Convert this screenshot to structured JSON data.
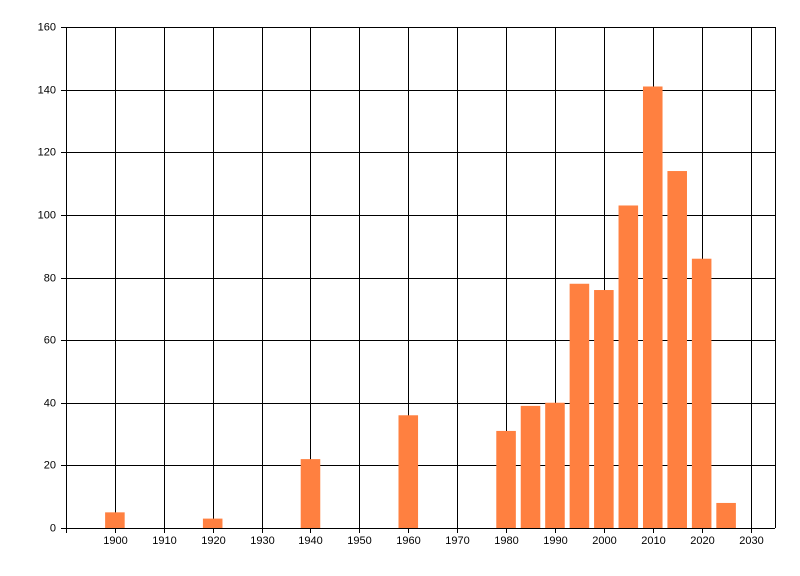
{
  "chart_data": {
    "type": "bar",
    "x": [
      1900,
      1920,
      1940,
      1960,
      1980,
      1985,
      1990,
      1995,
      2000,
      2005,
      2010,
      2015,
      2020,
      2025
    ],
    "values": [
      5,
      3,
      22,
      36,
      31,
      39,
      40,
      78,
      76,
      103,
      141,
      114,
      86,
      8
    ],
    "color": "#ff8040",
    "xlim": [
      1890,
      2035
    ],
    "xticks": [
      1900,
      1910,
      1920,
      1930,
      1940,
      1950,
      1960,
      1970,
      1980,
      1990,
      2000,
      2010,
      2020,
      2030
    ],
    "ylim": [
      0,
      160
    ],
    "yticks": [
      0,
      20,
      40,
      60,
      80,
      100,
      120,
      140,
      160
    ],
    "grid": true
  }
}
